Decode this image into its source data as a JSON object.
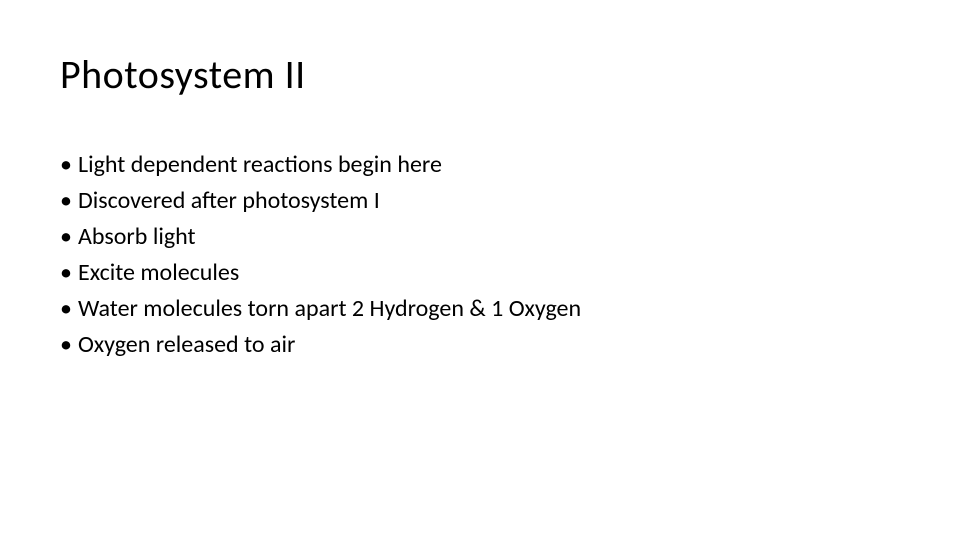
{
  "slide": {
    "title": "Photosystem II",
    "bullets": [
      "Light dependent reactions begin here",
      "Discovered after photosystem I",
      "Absorb light",
      "Excite molecules",
      "Water molecules torn apart 2 Hydrogen & 1 Oxygen",
      "Oxygen released to air"
    ]
  },
  "style": {
    "background_color": "#ffffff",
    "text_color": "#000000",
    "title_fontsize": 40,
    "title_fontweight": 400,
    "body_fontsize": 24,
    "font_family": "Calibri"
  }
}
